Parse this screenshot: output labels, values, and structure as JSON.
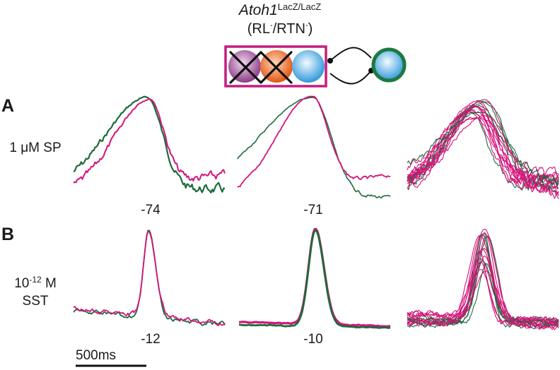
{
  "header": {
    "gene": "Atoh1",
    "gene_sup": "LacZ/LacZ",
    "genotype_open": "(RL",
    "genotype_sup1": "-",
    "genotype_mid": "/RTN",
    "genotype_sup2": "-",
    "genotype_close": ")"
  },
  "colors": {
    "magenta": "#d4147a",
    "green": "#1d6b3a",
    "box_border": "#c41d7f",
    "cell_purple": "#a04a9a",
    "cell_orange": "#e8651f",
    "cell_blue": "#3aa3e0",
    "cell_ring_green": "#1d7a3f"
  },
  "icons": {
    "cells": [
      "purple-cell-icon",
      "orange-cell-icon",
      "blue-cell-icon",
      "green-ring-cell-icon"
    ],
    "cross": "x-mark-icon",
    "connector": "bidirectional-connection-icon"
  },
  "panels": [
    {
      "letter": "A",
      "condition_line1": "1 μM SP",
      "condition_line2": "",
      "values": [
        "-74",
        "-71"
      ]
    },
    {
      "letter": "B",
      "condition_line1_pre": "10",
      "condition_line1_sup": "-12",
      "condition_line1_post": " M",
      "condition_line2": "SST",
      "values": [
        "-12",
        "-10"
      ]
    }
  ],
  "scale_bar": {
    "label": "500ms"
  }
}
